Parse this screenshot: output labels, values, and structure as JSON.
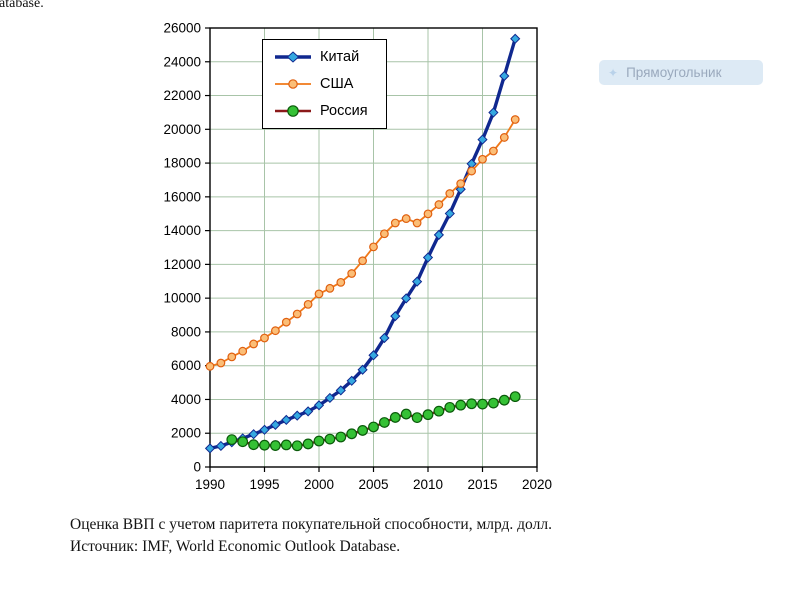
{
  "page": {
    "cropped_text_top_left": "atabase.",
    "caption": "Оценка ВВП с учетом паритета покупательной способности, млрд. долл. Источник: IMF, World Economic Outlook Database."
  },
  "overlay": {
    "label": "Прямоугольник",
    "bg_color": "#C1D8ED",
    "text_color": "#9AA9BD"
  },
  "chart_data": {
    "type": "line",
    "title": "",
    "xlabel": "",
    "ylabel": "",
    "xlim": [
      1990,
      2020
    ],
    "ylim": [
      0,
      26000
    ],
    "x_ticks": [
      1990,
      1995,
      2000,
      2005,
      2010,
      2015,
      2020
    ],
    "y_tick_step": 2000,
    "grid": true,
    "grid_color": "#a8c4a8",
    "border_color": "#000000",
    "legend_position": "upper-left",
    "x": [
      1990,
      1991,
      1992,
      1993,
      1994,
      1995,
      1996,
      1997,
      1998,
      1999,
      2000,
      2001,
      2002,
      2003,
      2004,
      2005,
      2006,
      2007,
      2008,
      2009,
      2010,
      2011,
      2012,
      2013,
      2014,
      2015,
      2016,
      2017,
      2018
    ],
    "series": [
      {
        "name": "Китай",
        "line_color": "#10288F",
        "line_width": 3.4,
        "marker": "diamond",
        "marker_fill": "#35A8E0",
        "marker_stroke": "#10288F",
        "marker_size": 3.4,
        "values": [
          1103,
          1247,
          1468,
          1697,
          1944,
          2203,
          2497,
          2790,
          3041,
          3294,
          3657,
          4090,
          4537,
          5105,
          5760,
          6617,
          7642,
          8936,
          9985,
          10977,
          12406,
          13748,
          15011,
          16450,
          17957,
          19392,
          20992,
          23159,
          25362
        ]
      },
      {
        "name": "США",
        "line_color": "#F07818",
        "line_width": 1.8,
        "marker": "circle",
        "marker_fill": "#FBBE77",
        "marker_stroke": "#E06010",
        "marker_size": 3.8,
        "values": [
          5963,
          6158,
          6520,
          6859,
          7287,
          7640,
          8073,
          8578,
          9063,
          9631,
          10252,
          10582,
          10936,
          11458,
          12214,
          13037,
          13815,
          14452,
          14713,
          14449,
          14992,
          15543,
          16197,
          16785,
          17527,
          18225,
          18715,
          19519,
          20580
        ]
      },
      {
        "name": "Россия",
        "line_color": "#8B1A1A",
        "line_width": 2.4,
        "marker": "circle",
        "marker_fill": "#35C135",
        "marker_stroke": "#0A5A0A",
        "marker_size": 4.8,
        "values": [
          null,
          null,
          1622,
          1497,
          1321,
          1293,
          1271,
          1309,
          1258,
          1365,
          1538,
          1652,
          1777,
          1966,
          2166,
          2371,
          2637,
          2934,
          3134,
          2925,
          3101,
          3308,
          3531,
          3663,
          3745,
          3725,
          3784,
          3958,
          4168
        ]
      }
    ]
  }
}
